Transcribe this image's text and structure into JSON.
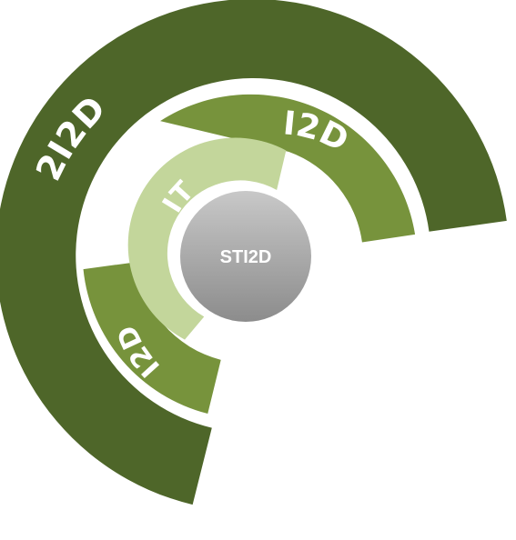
{
  "diagram": {
    "center": {
      "label": "STI2D"
    },
    "rings": [
      {
        "id": "outer",
        "label": "2I2D",
        "color": "#4e6629"
      },
      {
        "id": "middle_top",
        "label": "I2D",
        "color": "#77933c"
      },
      {
        "id": "middle_left",
        "label": "I2D",
        "color": "#77933c"
      },
      {
        "id": "inner",
        "label": "IT",
        "color": "#c3d69b"
      }
    ],
    "colors": {
      "center_top": "#c8c8c8",
      "center_bottom": "#8c8c8c",
      "center_ring": "#ffffff",
      "background": "#ffffff"
    }
  }
}
